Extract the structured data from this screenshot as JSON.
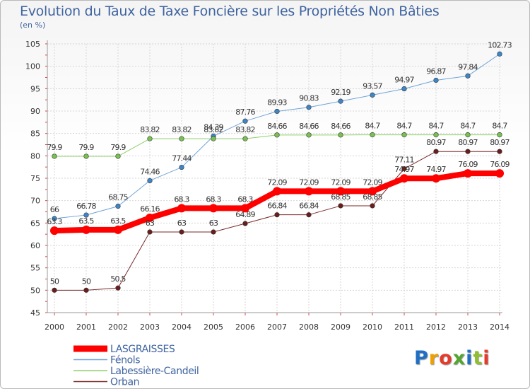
{
  "title": "Evolution du Taux de Taxe Foncière sur les Propriétés Non Bâties",
  "unit": "(en %)",
  "logo": {
    "text": "Proxiti",
    "colors": [
      "#1f6fc4",
      "#f0a000",
      "#e53b2c",
      "#55a630",
      "#1f6fc4",
      "#8fbf2f",
      "#e53b2c"
    ]
  },
  "chart_data": {
    "type": "line",
    "title": "Evolution du Taux de Taxe Foncière sur les Propriétés Non Bâties",
    "ylabel": "(en %)",
    "ylim": [
      45,
      105
    ],
    "yticks": [
      45,
      50,
      55,
      60,
      65,
      70,
      75,
      80,
      85,
      90,
      95,
      100,
      105
    ],
    "categories": [
      "2000",
      "2001",
      "2002",
      "2003",
      "2004",
      "2005",
      "2006",
      "2007",
      "2008",
      "2009",
      "2010",
      "2011",
      "2012",
      "2013",
      "2014"
    ],
    "grid": true,
    "legend": "bottom-left",
    "series": [
      {
        "name": "Fénols",
        "color": "#6fa3d8",
        "marker": "#3d86c8",
        "width": 1,
        "values": [
          66,
          66.78,
          68.75,
          74.46,
          77.44,
          84.39,
          87.76,
          89.93,
          90.83,
          92.19,
          93.57,
          94.97,
          96.87,
          97.84,
          102.73
        ],
        "labels": [
          "66",
          "66.78",
          "68.75",
          "74.46",
          "77.44",
          "84.39",
          "87.76",
          "89.93",
          "90.83",
          "92.19",
          "93.57",
          "94.97",
          "96.87",
          "97.84",
          "102.73"
        ]
      },
      {
        "name": "Labessière-Candeil",
        "color": "#8fd06a",
        "marker": "#7ac24f",
        "width": 1,
        "values": [
          79.9,
          79.9,
          79.9,
          83.82,
          83.82,
          83.82,
          83.82,
          84.66,
          84.66,
          84.66,
          84.7,
          84.7,
          84.7,
          84.7,
          84.7
        ],
        "labels": [
          "79.9",
          "79.9",
          "79.9",
          "83.82",
          "83.82",
          "83.82",
          "83.82",
          "84.66",
          "84.66",
          "84.66",
          "84.7",
          "84.7",
          "84.7",
          "84.7",
          "84.7"
        ]
      },
      {
        "name": "Orban",
        "color": "#7a2a2a",
        "marker": "#6b1d1d",
        "width": 1,
        "values": [
          50,
          50,
          50.5,
          63,
          63,
          63,
          64.89,
          66.84,
          66.84,
          68.85,
          68.85,
          77.11,
          80.97,
          80.97,
          80.97
        ],
        "labels": [
          "50",
          "50",
          "50.5",
          "63",
          "63",
          "63",
          "64.89",
          "66.84",
          "66.84",
          "68.85",
          "68.85",
          "77.11",
          "80.97",
          "80.97",
          "80.97"
        ]
      },
      {
        "name": "LASGRAISSES",
        "color": "#ff0000",
        "marker": "#ff0000",
        "width": 8,
        "values": [
          63.3,
          63.5,
          63.5,
          66.16,
          68.3,
          68.3,
          68.3,
          72.09,
          72.09,
          72.09,
          72.09,
          74.97,
          74.97,
          76.09,
          76.09
        ],
        "labels": [
          "63.3",
          "63.5",
          "63.5",
          "66.16",
          "68.3",
          "68.3",
          "68.3",
          "72.09",
          "72.09",
          "72.09",
          "72.09",
          "74.97",
          "74.97",
          "76.09",
          "76.09"
        ]
      }
    ],
    "legend_order": [
      "LASGRAISSES",
      "Fénols",
      "Labessière-Candeil",
      "Orban"
    ]
  }
}
